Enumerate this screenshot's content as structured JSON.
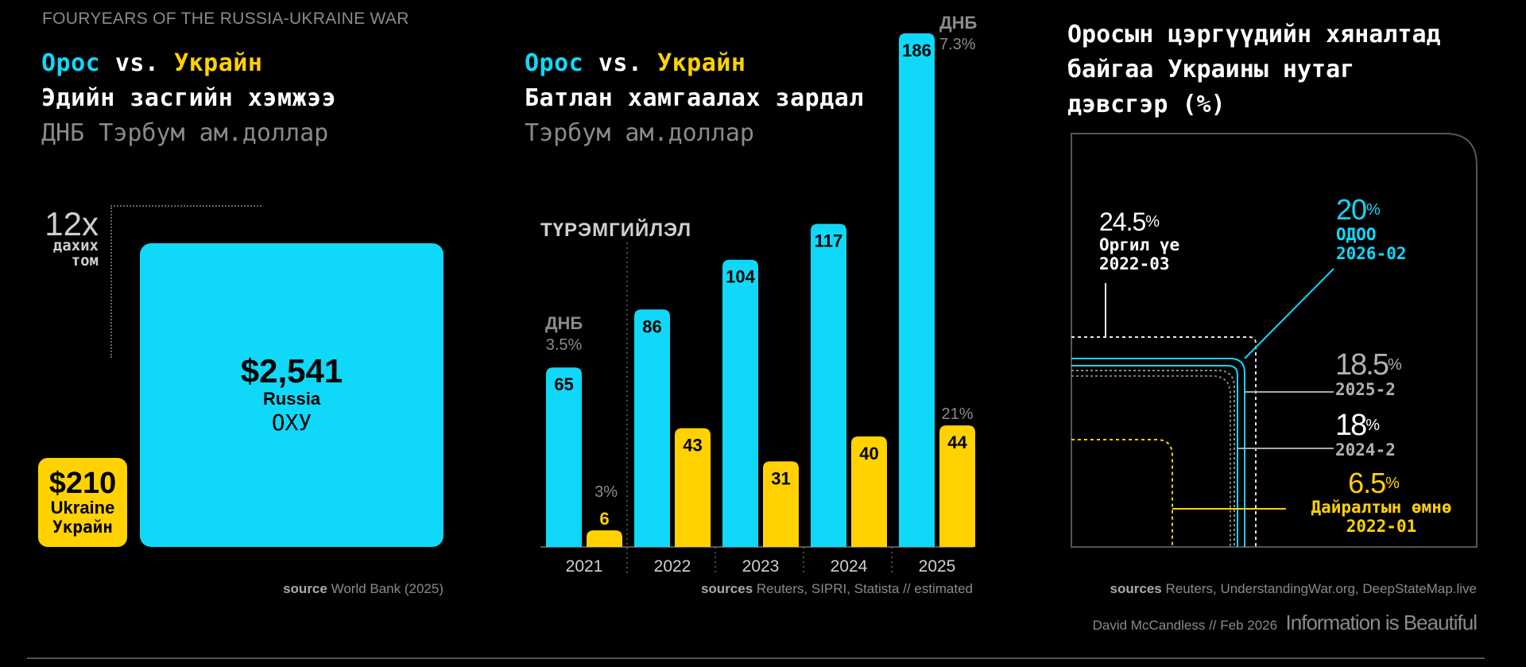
{
  "header": {
    "top_title": "FOURYEARS OF THE RUSSIA-UKRAINE WAR",
    "credit": "David McCandless // Feb 2026",
    "brand": "Information is Beautiful"
  },
  "colors": {
    "russia": "#10d8f8",
    "ukraine": "#ffd200",
    "muted": "#8a8a8a",
    "background": "#000000"
  },
  "panel1": {
    "vs_a": "Орос",
    "vs_word": "vs.",
    "vs_b": "Украйн",
    "title": "Эдийн засгийн хэмжээ",
    "subtitle": "ДНБ Тэрбум ам.доллар",
    "ratio_value": "12x",
    "ratio_line1": "дахих",
    "ratio_line2": "том",
    "source_label": "source",
    "source_text": "World Bank (2025)"
  },
  "panel2": {
    "vs_a": "Орос",
    "vs_word": "vs.",
    "vs_b": "Украйн",
    "title": "Батлан хамгаалах зардал",
    "subtitle": "Тэрбум ам.доллар",
    "invasion_label": "ТҮРЭМГИЙЛЭЛ",
    "gdp_word": "ДНБ",
    "source_label": "sources",
    "source_text": "Reuters, SIPRI, Statista // estimated"
  },
  "panel3": {
    "title_line1": "Оросын цэргүүдийн хяналтад",
    "title_line2": "байгаа Украины нутаг",
    "title_line3": "дэвсгэр (%)",
    "source_label": "sources",
    "source_text": "Reuters, UnderstandingWar.org, DeepStateMap.live"
  },
  "chart_data": [
    {
      "type": "bar",
      "title": "Эдийн засгийн хэмжээ — ДНБ Тэрбум ам.доллар",
      "categories": [
        "Russia",
        "Ukraine"
      ],
      "values": [
        2541,
        210
      ],
      "labels": [
        {
          "value": "$2,541",
          "en": "Russia",
          "mn": "ОХУ"
        },
        {
          "value": "$210",
          "en": "Ukraine",
          "mn": "Украйн"
        }
      ]
    },
    {
      "type": "bar",
      "title": "Батлан хамгаалах зардал — Тэрбум ам.доллар",
      "categories": [
        "2021",
        "2022",
        "2023",
        "2024",
        "2025"
      ],
      "series": [
        {
          "name": "Орос",
          "values": [
            65,
            86,
            104,
            117,
            186
          ]
        },
        {
          "name": "Украйн",
          "values": [
            6,
            43,
            31,
            40,
            44
          ]
        }
      ],
      "gdp_share_labels": [
        {
          "category": "2021",
          "series": "Орос",
          "text": "3.5%"
        },
        {
          "category": "2021",
          "series": "Украйн",
          "text": "3%"
        },
        {
          "category": "2025",
          "series": "Орос",
          "text": "7.3%"
        },
        {
          "category": "2025",
          "series": "Украйн",
          "text": "21%"
        }
      ],
      "annotation": "ТҮРЭМГИЙЛЭЛ",
      "ylim": [
        0,
        190
      ]
    },
    {
      "type": "area",
      "title": "Оросын цэргүүдийн хяналтад байгаа Украины нутаг дэвсгэр (%)",
      "points": [
        {
          "value": 24.5,
          "unit": "%",
          "line1": "Оргил үе",
          "line2": "2022-03",
          "color": "#ffffff"
        },
        {
          "value": 20,
          "unit": "%",
          "line1": "ОДОО",
          "line2": "2026-02",
          "color": "#10d8f8"
        },
        {
          "value": 18.5,
          "unit": "%",
          "line1": "",
          "line2": "2025-2",
          "color": "#b0b0b0"
        },
        {
          "value": 18,
          "unit": "%",
          "line1": "",
          "line2": "2024-2",
          "color": "#b0b0b0"
        },
        {
          "value": 6.5,
          "unit": "%",
          "line1": "Дайралтын өмнө",
          "line2": "2022-01",
          "color": "#ffd200"
        }
      ]
    }
  ]
}
